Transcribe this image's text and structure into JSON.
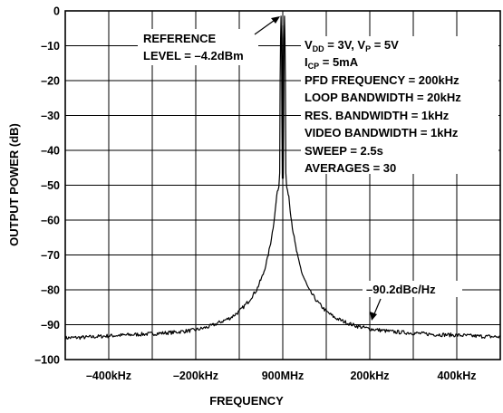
{
  "chart_data": {
    "type": "line",
    "title": "",
    "xlabel": "FREQUENCY",
    "ylabel": "OUTPUT POWER (dB)",
    "ylim": [
      -100,
      0
    ],
    "yticks": [
      0,
      -10,
      -20,
      -30,
      -40,
      -50,
      -60,
      -70,
      -80,
      -90,
      -100
    ],
    "ytick_labels": [
      "0",
      "–10",
      "–20",
      "–30",
      "–40",
      "–50",
      "–60",
      "–70",
      "–80",
      "–90",
      "–100"
    ],
    "xlim_khz": [
      -500,
      500
    ],
    "xticks_khz": [
      -400,
      -200,
      0,
      200,
      400
    ],
    "xtick_labels": [
      "–400kHz",
      "–200kHz",
      "900MHz",
      "200kHz",
      "400kHz"
    ],
    "grid": true,
    "series": [
      {
        "points_khz_db": [
          [
            -500,
            -93.8
          ],
          [
            -450,
            -93.6
          ],
          [
            -400,
            -93.2
          ],
          [
            -350,
            -92.9
          ],
          [
            -300,
            -92.6
          ],
          [
            -250,
            -92.2
          ],
          [
            -200,
            -91.5
          ],
          [
            -170,
            -90.6
          ],
          [
            -150,
            -89.6
          ],
          [
            -120,
            -88.0
          ],
          [
            -100,
            -86.2
          ],
          [
            -80,
            -83.5
          ],
          [
            -60,
            -80.0
          ],
          [
            -45,
            -75.5
          ],
          [
            -35,
            -71.0
          ],
          [
            -28,
            -66.5
          ],
          [
            -22,
            -62.0
          ],
          [
            -17,
            -57.0
          ],
          [
            -14,
            -53.0
          ],
          [
            -11,
            -51.5
          ],
          [
            -9,
            -50.5
          ],
          [
            -7,
            -46.5
          ],
          [
            -6,
            -20.0
          ],
          [
            -5,
            -8.0
          ],
          [
            -4,
            -1.5
          ],
          [
            -3,
            -8.0
          ],
          [
            -2,
            -30.0
          ],
          [
            -1,
            -48.0
          ],
          [
            0,
            -4.2
          ],
          [
            1,
            -48.0
          ],
          [
            2,
            -30.0
          ],
          [
            3,
            -8.0
          ],
          [
            4,
            -1.5
          ],
          [
            5,
            -8.0
          ],
          [
            6,
            -20.0
          ],
          [
            7,
            -46.5
          ],
          [
            9,
            -50.5
          ],
          [
            11,
            -51.5
          ],
          [
            14,
            -53.0
          ],
          [
            17,
            -57.0
          ],
          [
            22,
            -62.0
          ],
          [
            28,
            -66.5
          ],
          [
            35,
            -71.0
          ],
          [
            45,
            -75.5
          ],
          [
            60,
            -80.0
          ],
          [
            80,
            -83.5
          ],
          [
            100,
            -86.2
          ],
          [
            120,
            -88.0
          ],
          [
            150,
            -89.6
          ],
          [
            170,
            -90.4
          ],
          [
            200,
            -91.2
          ],
          [
            250,
            -92.0
          ],
          [
            300,
            -92.4
          ],
          [
            350,
            -92.8
          ],
          [
            400,
            -93.0
          ],
          [
            450,
            -93.3
          ],
          [
            500,
            -93.5
          ]
        ]
      }
    ],
    "annotations": {
      "reference": [
        "REFERENCE",
        "LEVEL = –4.2dBm"
      ],
      "noise_floor": "–90.2dBc/Hz",
      "conditions": [
        "V_DD = 3V, V_P = 5V",
        "I_CP = 5mA",
        "PFD FREQUENCY = 200kHz",
        "LOOP BANDWIDTH = 20kHz",
        "RES. BANDWIDTH = 1kHz",
        "VIDEO BANDWIDTH = 1kHz",
        "SWEEP = 2.5s",
        "AVERAGES = 30"
      ]
    }
  }
}
